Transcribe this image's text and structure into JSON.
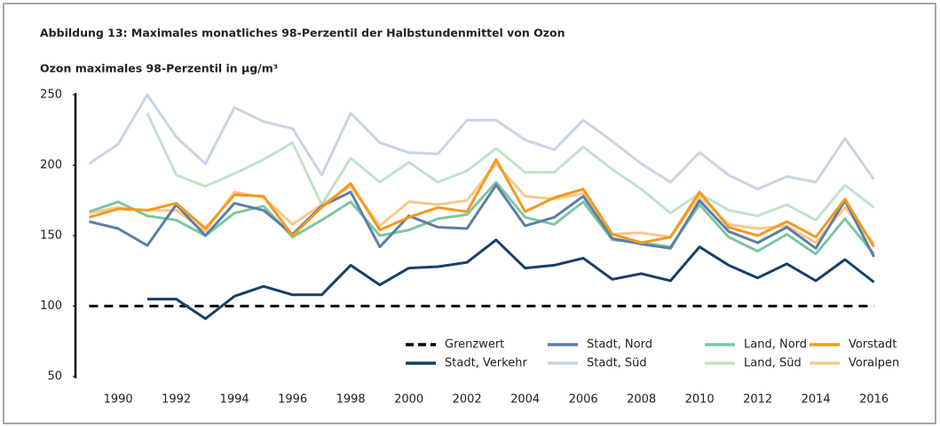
{
  "chart_data": {
    "type": "line",
    "title": "Abbildung 13: Maximales monatliches 98-Perzentil der Halbstundenmittel von Ozon",
    "y_label": "Ozon maximales 98-Perzentil in µg/m³",
    "x": [
      1989,
      1990,
      1991,
      1992,
      1993,
      1994,
      1995,
      1996,
      1997,
      1998,
      1999,
      2000,
      2001,
      2002,
      2003,
      2004,
      2005,
      2006,
      2007,
      2008,
      2009,
      2010,
      2011,
      2012,
      2013,
      2014,
      2015,
      2016
    ],
    "xlim": [
      1988.5,
      2016.5
    ],
    "xticks": [
      1990,
      1992,
      1994,
      1996,
      1998,
      2000,
      2002,
      2004,
      2006,
      2008,
      2010,
      2012,
      2014,
      2016
    ],
    "ylim": [
      50,
      250
    ],
    "yticks": [
      50,
      100,
      150,
      200,
      250
    ],
    "grid": false,
    "legend": "lower right",
    "series": [
      {
        "name": "Grenzwert",
        "color": "#000000",
        "linestyle": "dashed",
        "values": [
          100,
          100,
          100,
          100,
          100,
          100,
          100,
          100,
          100,
          100,
          100,
          100,
          100,
          100,
          100,
          100,
          100,
          100,
          100,
          100,
          100,
          100,
          100,
          100,
          100,
          100,
          100,
          100
        ]
      },
      {
        "name": "Stadt, Verkehr",
        "color": "#173f6b",
        "values": [
          null,
          null,
          105,
          105,
          91,
          107,
          114,
          108,
          108,
          129,
          115,
          127,
          128,
          131,
          147,
          127,
          129,
          134,
          119,
          123,
          118,
          142,
          129,
          120,
          130,
          118,
          133,
          117
        ]
      },
      {
        "name": "Stadt, Nord",
        "color": "#5c7fa8",
        "values": [
          160,
          155,
          143,
          172,
          150,
          173,
          168,
          151,
          171,
          181,
          142,
          164,
          156,
          155,
          186,
          157,
          163,
          178,
          148,
          144,
          141,
          175,
          153,
          145,
          156,
          141,
          175,
          135
        ]
      },
      {
        "name": "Stadt, Süd",
        "color": "#c9d4e4",
        "values": [
          201,
          215,
          250,
          220,
          201,
          241,
          231,
          226,
          193,
          237,
          216,
          209,
          208,
          232,
          232,
          218,
          211,
          232,
          217,
          201,
          188,
          209,
          193,
          183,
          192,
          188,
          219,
          190
        ]
      },
      {
        "name": "Land, Nord",
        "color": "#7dc79f",
        "values": [
          167,
          174,
          164,
          161,
          150,
          166,
          171,
          149,
          161,
          174,
          150,
          154,
          162,
          165,
          188,
          163,
          158,
          174,
          147,
          145,
          142,
          172,
          149,
          139,
          151,
          137,
          162,
          137
        ]
      },
      {
        "name": "Land, Süd",
        "color": "#c0e3ca",
        "values": [
          null,
          null,
          237,
          193,
          185,
          194,
          204,
          216,
          172,
          205,
          188,
          202,
          188,
          196,
          212,
          195,
          195,
          213,
          197,
          183,
          166,
          180,
          168,
          164,
          172,
          161,
          186,
          170
        ]
      },
      {
        "name": "Vorstadt",
        "color": "#f39a1e",
        "values": [
          163,
          169,
          168,
          173,
          155,
          179,
          178,
          150,
          170,
          187,
          154,
          163,
          170,
          167,
          204,
          167,
          177,
          183,
          151,
          145,
          149,
          181,
          156,
          150,
          160,
          149,
          176,
          142
        ]
      },
      {
        "name": "Voralpen",
        "color": "#f8c98b",
        "values": [
          166,
          170,
          168,
          168,
          153,
          181,
          177,
          158,
          172,
          185,
          157,
          174,
          172,
          175,
          201,
          178,
          176,
          180,
          151,
          152,
          149,
          178,
          158,
          155,
          157,
          145,
          170,
          144
        ]
      }
    ]
  }
}
